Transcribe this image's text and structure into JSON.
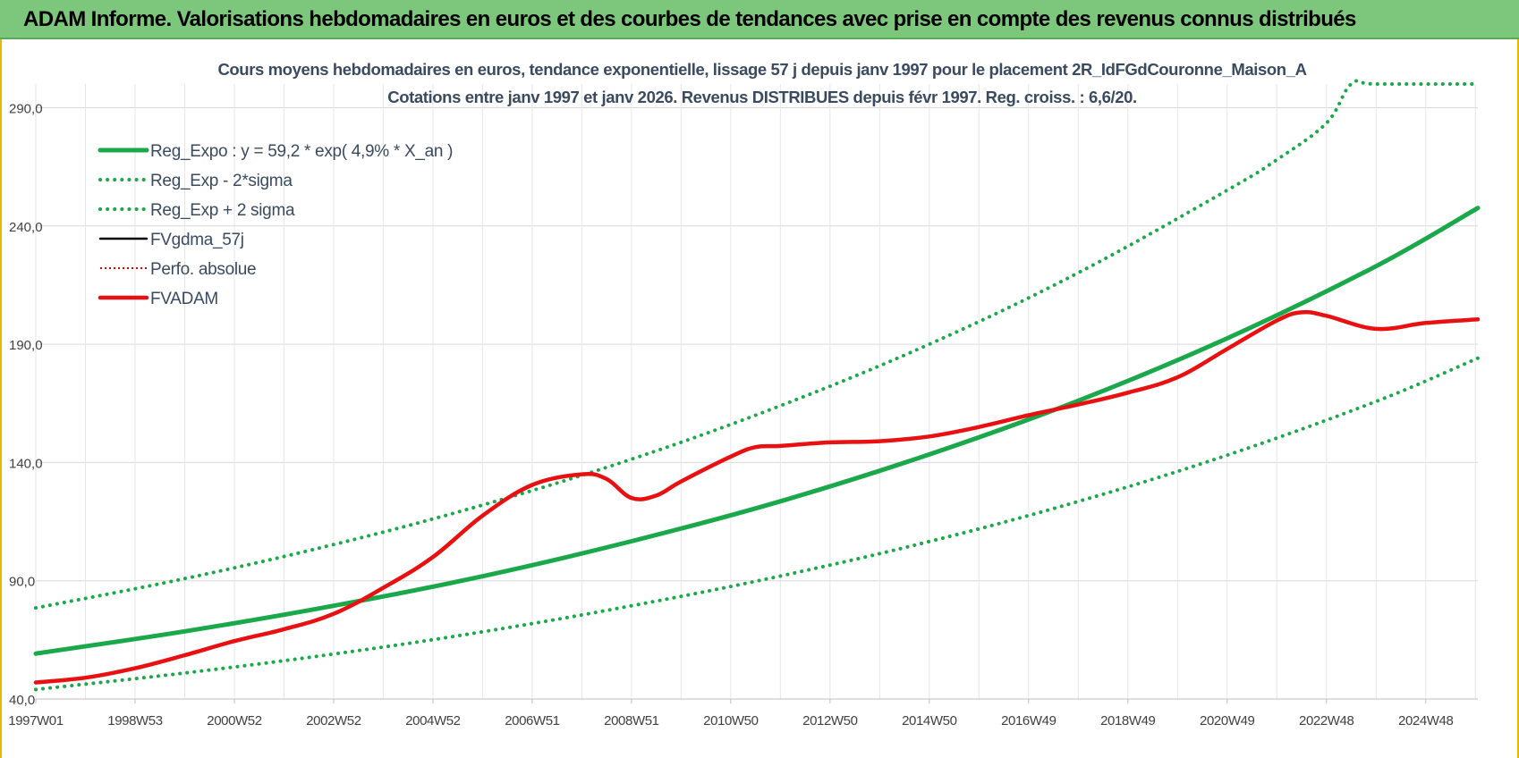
{
  "banner": {
    "title": "ADAM Informe. Valorisations hebdomadaires en euros et des courbes de tendances avec prise en compte des revenus connus distribués"
  },
  "colors": {
    "banner_bg": "#7dc77d",
    "reg_expo": "#1aa84a",
    "sigma_bands": "#1aa84a",
    "fvgdma": "#000000",
    "perfo": "#e00000",
    "fvadam": "#e81010",
    "grid": "#d9d9d9"
  },
  "chart_data": {
    "type": "line",
    "title_line1": "Cours moyens hebdomadaires en euros, tendance exponentielle, lissage 57 j depuis janv 1997 pour le placement 2R_IdFGdCouronne_Maison_A",
    "title_line2": "Cotations entre janv 1997 et janv 2026. Revenus DISTRIBUES depuis févr 1997. Reg. croiss. : 6,6/20.",
    "x_tick_labels": [
      "1997W01",
      "1998W53",
      "2000W52",
      "2002W52",
      "2004W52",
      "2006W51",
      "2008W51",
      "2010W50",
      "2012W50",
      "2014W50",
      "2016W49",
      "2018W49",
      "2020W49",
      "2022W48",
      "2024W48"
    ],
    "x_tick_years": [
      1997.0,
      1999.0,
      2001.0,
      2003.0,
      2005.0,
      2007.0,
      2009.0,
      2011.0,
      2013.0,
      2015.0,
      2017.0,
      2019.0,
      2021.0,
      2023.0,
      2025.0
    ],
    "xlim": [
      1997.0,
      2026.05
    ],
    "y_ticks": [
      40.0,
      90.0,
      140.0,
      190.0,
      240.0,
      290.0
    ],
    "y_tick_labels": [
      "40,0",
      "90,0",
      "140,0",
      "190,0",
      "240,0",
      "290,0"
    ],
    "ylim": [
      40,
      300
    ],
    "y_clip_max": 300,
    "grid": true,
    "legend_position": "top-left",
    "legend": [
      {
        "label": "Reg_Expo : y = 59,2 * exp( 4,9% *  X_an )",
        "style": "solid-thick",
        "color": "#1aa84a"
      },
      {
        "label": "Reg_Exp - 2*sigma",
        "style": "dotted",
        "color": "#1aa84a"
      },
      {
        "label": "Reg_Exp + 2 sigma",
        "style": "dotted",
        "color": "#1aa84a"
      },
      {
        "label": "FVgdma_57j",
        "style": "solid",
        "color": "#000000"
      },
      {
        "label": "Perfo. absolue",
        "style": "dotted-thin",
        "color": "#e00000"
      },
      {
        "label": "FVADAM",
        "style": "solid-thick",
        "color": "#e81010"
      }
    ],
    "series": [
      {
        "name": "Reg_Expo : y = 59,2 * exp( 4,9% *  X_an )",
        "x": [
          1997.0,
          2000.0,
          2003.0,
          2006.0,
          2009.0,
          2012.0,
          2015.0,
          2018.0,
          2021.0,
          2024.0,
          2026.05
        ],
        "y": [
          59.2,
          68.6,
          79.4,
          91.9,
          106.7,
          123.6,
          143.4,
          166.1,
          192.5,
          223.0,
          247.6
        ]
      },
      {
        "name": "Reg_Exp - 2*sigma",
        "x": [
          1997.0,
          2000.0,
          2003.0,
          2006.0,
          2009.0,
          2012.0,
          2015.0,
          2018.0,
          2021.0,
          2024.0,
          2026.05
        ],
        "y": [
          44.0,
          51.0,
          59.0,
          68.4,
          79.4,
          92.0,
          106.6,
          123.5,
          143.1,
          165.8,
          184.1
        ]
      },
      {
        "name": "Reg_Exp + 2 sigma",
        "x": [
          1997.0,
          2000.0,
          2003.0,
          2006.0,
          2009.0,
          2012.0,
          2015.0,
          2018.0,
          2021.0,
          2022.0,
          2023.0,
          2023.5,
          2024.0,
          2026.05
        ],
        "y": [
          78.5,
          90.9,
          105.3,
          122.0,
          141.4,
          164.0,
          190.0,
          220.2,
          255.1,
          268.0,
          283.5,
          300.0,
          300.0,
          300.0
        ]
      },
      {
        "name": "FVgdma_57j",
        "x": [
          1997.0,
          1998.0,
          1999.0,
          2000.0,
          2001.0,
          2002.0,
          2003.0,
          2004.0,
          2005.0,
          2006.0,
          2007.0,
          2008.0,
          2008.5,
          2009.0,
          2009.5,
          2010.0,
          2011.0,
          2011.5,
          2012.0,
          2013.0,
          2014.0,
          2015.0,
          2016.0,
          2017.0,
          2018.0,
          2019.0,
          2020.0,
          2021.0,
          2022.0,
          2022.5,
          2023.0,
          2024.0,
          2025.0,
          2026.05
        ],
        "y": [
          47.0,
          49.0,
          53.0,
          58.5,
          64.5,
          69.5,
          76.0,
          87.0,
          100.0,
          117.5,
          130.5,
          135.0,
          133.0,
          125.0,
          126.0,
          132.0,
          142.5,
          146.5,
          147.0,
          148.5,
          149.0,
          151.0,
          155.0,
          160.0,
          164.5,
          169.5,
          176.0,
          188.0,
          200.0,
          203.5,
          202.0,
          196.5,
          199.0,
          200.5
        ]
      },
      {
        "name": "Perfo. absolue",
        "x": [
          1997.0,
          1998.0,
          1999.0,
          2000.0,
          2001.0,
          2002.0,
          2003.0,
          2004.0,
          2005.0,
          2006.0,
          2007.0,
          2008.0,
          2008.5,
          2009.0,
          2009.5,
          2010.0,
          2011.0,
          2011.5,
          2012.0,
          2013.0,
          2014.0,
          2015.0,
          2016.0,
          2017.0,
          2018.0,
          2019.0,
          2020.0,
          2021.0,
          2022.0,
          2022.5,
          2023.0,
          2024.0,
          2025.0,
          2026.05
        ],
        "y": [
          47.0,
          49.0,
          53.0,
          58.5,
          64.5,
          69.5,
          76.0,
          87.0,
          100.0,
          117.5,
          130.5,
          135.0,
          133.0,
          125.0,
          126.0,
          132.0,
          142.5,
          146.5,
          147.0,
          148.5,
          149.0,
          151.0,
          155.0,
          160.0,
          164.5,
          169.5,
          176.0,
          188.0,
          200.0,
          203.5,
          202.0,
          196.5,
          199.0,
          200.5
        ]
      },
      {
        "name": "FVADAM",
        "x": [
          1997.0,
          1998.0,
          1999.0,
          2000.0,
          2001.0,
          2002.0,
          2003.0,
          2004.0,
          2005.0,
          2006.0,
          2007.0,
          2008.0,
          2008.5,
          2009.0,
          2009.5,
          2010.0,
          2011.0,
          2011.5,
          2012.0,
          2013.0,
          2014.0,
          2015.0,
          2016.0,
          2017.0,
          2018.0,
          2019.0,
          2020.0,
          2021.0,
          2022.0,
          2022.5,
          2023.0,
          2024.0,
          2025.0,
          2026.05
        ],
        "y": [
          47.0,
          49.0,
          53.0,
          58.5,
          64.5,
          69.5,
          76.0,
          87.0,
          100.0,
          117.5,
          130.5,
          135.0,
          133.0,
          125.0,
          126.0,
          132.0,
          142.5,
          146.5,
          147.0,
          148.5,
          149.0,
          151.0,
          155.0,
          160.0,
          164.5,
          169.5,
          176.0,
          188.0,
          200.0,
          203.5,
          202.0,
          196.5,
          199.0,
          200.5
        ]
      }
    ]
  }
}
